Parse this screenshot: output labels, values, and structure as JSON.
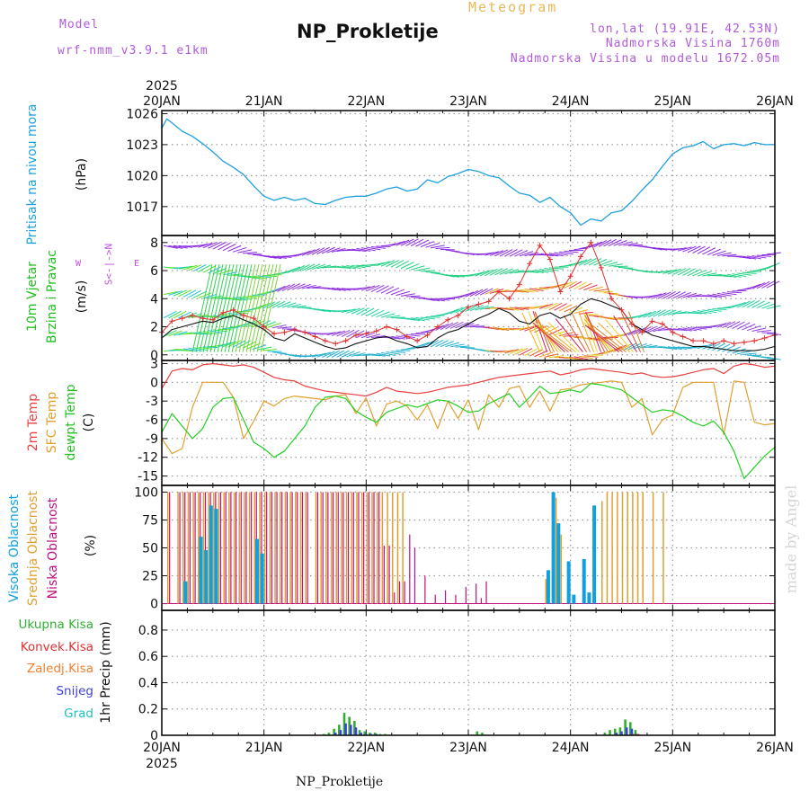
{
  "header": {
    "model_label": "Model",
    "model_name": "wrf-nmm_v3.9.1 e1km",
    "meteogram": "Meteogram",
    "title": "NP_Prokletije",
    "lonlat": "lon,lat (19.91E, 42.53N)",
    "altitude": "Nadmorska Visina 1760m",
    "model_altitude": "Nadmorska Visina u modelu 1672.05m"
  },
  "footer": {
    "station": "NP_Prokletije",
    "credit": "made by Angel"
  },
  "time_axis": {
    "labels": [
      "20JAN",
      "21JAN",
      "22JAN",
      "23JAN",
      "24JAN",
      "25JAN",
      "26JAN"
    ],
    "year": "2025"
  },
  "colors": {
    "pressure": "#1ea0e0",
    "temp2m": "#e84040",
    "sfctemp": "#e0a030",
    "dewpt": "#20d020",
    "high_cloud": "#10a0e0",
    "mid_cloud": "#e0a030",
    "low_cloud": "#c01080",
    "precip_total": "#30b030",
    "precip_conv": "#e03030",
    "snow": "#4040e0",
    "hail": "#20c0c0",
    "wind_speed": "#111111",
    "gust": "#e03030"
  },
  "chart_data": [
    {
      "type": "line",
      "panel": "pressure",
      "ylabel": "Pritisak na nivou mora",
      "unit": "(hPa)",
      "yticks": [
        1017,
        1020,
        1023,
        1026
      ],
      "ylim": [
        1014.2,
        1026.3
      ],
      "x_days": [
        0,
        0.05,
        0.1,
        0.2,
        0.3,
        0.4,
        0.5,
        0.6,
        0.7,
        0.8,
        0.9,
        1.0,
        1.1,
        1.2,
        1.3,
        1.4,
        1.5,
        1.6,
        1.7,
        1.8,
        1.9,
        2.0,
        2.1,
        2.2,
        2.3,
        2.4,
        2.5,
        2.6,
        2.7,
        2.8,
        2.9,
        3.0,
        3.1,
        3.2,
        3.3,
        3.4,
        3.5,
        3.6,
        3.7,
        3.8,
        3.9,
        4.0,
        4.1,
        4.2,
        4.3,
        4.4,
        4.5,
        4.6,
        4.7,
        4.8,
        4.9,
        5.0,
        5.1,
        5.2,
        5.3,
        5.4,
        5.5,
        5.6,
        5.7,
        5.8,
        5.9,
        6.0
      ],
      "values": [
        1024.6,
        1025.5,
        1025.1,
        1024.3,
        1023.8,
        1023.1,
        1022.3,
        1021.4,
        1020.8,
        1020.1,
        1019.0,
        1018.0,
        1017.6,
        1017.9,
        1017.6,
        1017.8,
        1017.3,
        1017.2,
        1017.6,
        1017.9,
        1018.0,
        1018.0,
        1018.3,
        1018.7,
        1018.9,
        1018.5,
        1018.7,
        1019.6,
        1019.3,
        1019.9,
        1020.2,
        1020.6,
        1020.4,
        1020.0,
        1019.8,
        1019.0,
        1018.3,
        1018.1,
        1017.4,
        1017.9,
        1017.0,
        1016.4,
        1015.2,
        1015.8,
        1015.6,
        1016.4,
        1016.6,
        1017.5,
        1018.6,
        1019.6,
        1020.9,
        1022.1,
        1022.7,
        1022.9,
        1023.3,
        1022.6,
        1023.0,
        1023.1,
        1022.9,
        1023.2,
        1023.0,
        1023.0
      ]
    },
    {
      "type": "line",
      "panel": "wind",
      "ylabel": "10m Vjetar Brzina i Pravac",
      "unit": "(m/s)",
      "direction_labels": {
        "n": "N",
        "s": "S",
        "w": "W",
        "e": "E",
        "compass": "<-|->"
      },
      "yticks": [
        0,
        2,
        4,
        6,
        8
      ],
      "ylim": [
        -0.4,
        8.5
      ],
      "x_days": [
        0,
        0.1,
        0.2,
        0.3,
        0.4,
        0.5,
        0.6,
        0.7,
        0.8,
        0.9,
        1.0,
        1.1,
        1.2,
        1.3,
        1.4,
        1.5,
        1.6,
        1.7,
        1.8,
        1.9,
        2.0,
        2.1,
        2.2,
        2.3,
        2.4,
        2.5,
        2.6,
        2.7,
        2.8,
        2.9,
        3.0,
        3.1,
        3.2,
        3.3,
        3.4,
        3.5,
        3.6,
        3.7,
        3.8,
        3.9,
        4.0,
        4.1,
        4.2,
        4.3,
        4.4,
        4.5,
        4.6,
        4.7,
        4.8,
        4.9,
        5.0,
        5.1,
        5.2,
        5.3,
        5.4,
        5.5,
        5.6,
        5.7,
        5.8,
        5.9,
        6.0
      ],
      "series": [
        {
          "role": "speed",
          "values": [
            1.2,
            1.8,
            2.0,
            2.2,
            2.4,
            2.3,
            2.6,
            2.8,
            2.5,
            2.2,
            1.8,
            1.2,
            1.0,
            1.5,
            1.2,
            0.9,
            0.6,
            0.4,
            0.5,
            0.8,
            1.0,
            1.2,
            1.3,
            1.0,
            0.8,
            0.5,
            0.6,
            1.2,
            1.6,
            1.8,
            2.2,
            2.6,
            2.9,
            3.3,
            3.0,
            2.4,
            2.2,
            2.8,
            3.0,
            2.6,
            2.9,
            3.6,
            4.0,
            3.8,
            3.5,
            3.2,
            2.2,
            1.8,
            1.4,
            1.2,
            1.0,
            0.8,
            0.6,
            0.6,
            0.5,
            0.4,
            0.3,
            0.3,
            0.3,
            0.4,
            0.6
          ]
        },
        {
          "role": "gust",
          "values": [
            1.6,
            2.4,
            2.6,
            2.8,
            2.6,
            2.5,
            3.0,
            3.2,
            2.8,
            2.6,
            2.0,
            1.5,
            1.6,
            1.8,
            1.6,
            1.3,
            1.0,
            0.8,
            1.0,
            1.4,
            1.5,
            1.7,
            2.0,
            1.8,
            1.3,
            1.0,
            1.4,
            2.0,
            2.5,
            2.8,
            3.4,
            3.6,
            3.8,
            4.5,
            4.0,
            5.0,
            6.5,
            7.8,
            6.8,
            4.5,
            5.6,
            7.0,
            8.0,
            6.2,
            4.0,
            3.2,
            2.2,
            1.6,
            2.4,
            2.2,
            1.6,
            1.3,
            1.0,
            1.0,
            0.8,
            1.0,
            0.8,
            0.9,
            1.0,
            1.2,
            1.4
          ]
        }
      ]
    },
    {
      "type": "line",
      "panel": "temperature",
      "ylabel": "2m Temp SFC Temp dewpt Temp",
      "legend": [
        "2m Temp",
        "SFC Temp",
        "dewpt Temp"
      ],
      "unit": "(C)",
      "yticks": [
        -15,
        -12,
        -9,
        -6,
        -3,
        0,
        3
      ],
      "ylim": [
        -16.5,
        3.5
      ],
      "x_days": [
        0,
        0.1,
        0.2,
        0.3,
        0.4,
        0.5,
        0.6,
        0.7,
        0.8,
        0.9,
        1.0,
        1.1,
        1.2,
        1.3,
        1.4,
        1.5,
        1.6,
        1.7,
        1.8,
        1.9,
        2.0,
        2.1,
        2.2,
        2.3,
        2.4,
        2.5,
        2.6,
        2.7,
        2.8,
        2.9,
        3.0,
        3.1,
        3.2,
        3.3,
        3.4,
        3.5,
        3.6,
        3.7,
        3.8,
        3.9,
        4.0,
        4.1,
        4.2,
        4.3,
        4.4,
        4.5,
        4.6,
        4.7,
        4.8,
        4.9,
        5.0,
        5.1,
        5.2,
        5.3,
        5.4,
        5.5,
        5.6,
        5.7,
        5.8,
        5.9,
        6.0
      ],
      "series": [
        {
          "name": "2m Temp",
          "values": [
            -1.0,
            1.8,
            2.2,
            2.0,
            2.8,
            3.0,
            2.8,
            2.6,
            2.8,
            2.4,
            1.6,
            0.8,
            0.4,
            0.2,
            -0.6,
            -1.0,
            -1.4,
            -1.6,
            -1.8,
            -2.0,
            -2.2,
            -1.6,
            -0.8,
            -1.4,
            -1.6,
            -1.8,
            -1.6,
            -1.2,
            -0.8,
            -0.6,
            -0.4,
            0.0,
            0.4,
            0.8,
            1.0,
            1.2,
            1.4,
            1.6,
            1.8,
            1.2,
            1.5,
            2.0,
            2.2,
            2.0,
            1.8,
            1.6,
            1.3,
            1.5,
            1.0,
            0.8,
            0.9,
            1.2,
            1.6,
            2.0,
            2.2,
            1.4,
            2.6,
            3.0,
            2.8,
            2.4,
            2.6
          ]
        },
        {
          "name": "SFC Temp",
          "values": [
            -9.0,
            -11.4,
            -10.6,
            -4.0,
            0.0,
            0.0,
            0.0,
            -2.4,
            -9.0,
            -6.2,
            -3.0,
            -3.8,
            -2.6,
            -2.2,
            -2.4,
            -2.6,
            -2.8,
            -2.2,
            -2.0,
            -5.0,
            -2.5,
            -7.0,
            -3.5,
            -3.0,
            -3.8,
            -6.0,
            -3.6,
            -7.4,
            -3.0,
            -5.8,
            -2.8,
            -7.6,
            -2.0,
            -4.0,
            -1.0,
            -0.6,
            -4.0,
            -1.4,
            -4.6,
            -1.2,
            -1.0,
            -0.4,
            -0.2,
            0.0,
            0.2,
            0.0,
            -4.0,
            -2.6,
            -8.4,
            -6.0,
            -5.2,
            -0.8,
            0.0,
            0.0,
            0.0,
            -8.4,
            0.2,
            0.0,
            -6.4,
            -6.8,
            -6.6
          ]
        },
        {
          "name": "dewpt Temp",
          "values": [
            -8.0,
            -5.0,
            -7.0,
            -9.0,
            -7.4,
            -4.0,
            -2.6,
            -2.4,
            -6.0,
            -9.6,
            -10.6,
            -12.0,
            -11.0,
            -9.0,
            -7.0,
            -4.0,
            -2.4,
            -2.2,
            -2.6,
            -4.6,
            -5.6,
            -6.4,
            -4.8,
            -4.2,
            -3.6,
            -4.0,
            -3.4,
            -2.8,
            -3.0,
            -3.8,
            -4.8,
            -4.6,
            -3.4,
            -2.6,
            -1.8,
            -4.0,
            -2.4,
            -0.6,
            -1.8,
            -1.6,
            -1.2,
            -1.6,
            -0.2,
            -0.4,
            -0.8,
            -1.2,
            -2.4,
            -3.6,
            -4.8,
            -4.4,
            -4.6,
            -5.4,
            -6.4,
            -7.0,
            -6.2,
            -8.0,
            -11.0,
            -15.4,
            -13.6,
            -11.8,
            -10.4
          ]
        }
      ]
    },
    {
      "type": "bar",
      "panel": "clouds",
      "ylabel": "Visoka Oblacnost Srednja Oblacnost Niska Oblacnost",
      "legend": [
        "Visoka Oblacnost",
        "Srednja Oblacnost",
        "Niska Oblacnost"
      ],
      "unit": "(%)",
      "yticks": [
        0,
        25,
        50,
        75,
        100
      ],
      "ylim": [
        -6,
        106
      ],
      "x_days": [
        0.05,
        0.15,
        0.2,
        0.25,
        0.3,
        0.35,
        0.4,
        0.45,
        0.5,
        0.55,
        0.6,
        0.65,
        0.7,
        0.75,
        0.8,
        0.85,
        0.9,
        0.95,
        1.0,
        1.05,
        1.1,
        1.15,
        1.2,
        1.25,
        1.3,
        1.35,
        1.4,
        1.5,
        1.55,
        1.6,
        1.65,
        1.7,
        1.75,
        1.8,
        1.85,
        1.9,
        1.95,
        2.0,
        2.05,
        2.1,
        2.15,
        2.2,
        2.25,
        2.3,
        2.35,
        2.4,
        2.45,
        2.55,
        2.65,
        2.75,
        2.85,
        2.95,
        3.05,
        3.1,
        3.15,
        3.2,
        3.25,
        3.3,
        3.35,
        3.4,
        3.45,
        3.5,
        3.55,
        3.6,
        3.65,
        3.7,
        3.75,
        3.8,
        3.85,
        3.9,
        3.95,
        4.0,
        4.05,
        4.1,
        4.15,
        4.2,
        4.25,
        4.3,
        4.35,
        4.4,
        4.45,
        4.5,
        4.55,
        4.6,
        4.65,
        4.7,
        4.8,
        4.9
      ],
      "series": [
        {
          "name": "Visoka Oblacnost",
          "values": [
            0,
            0,
            0,
            20,
            0,
            0,
            60,
            48,
            88,
            85,
            0,
            0,
            0,
            0,
            0,
            0,
            0,
            58,
            45,
            0,
            0,
            0,
            0,
            0,
            0,
            0,
            0,
            0,
            0,
            0,
            0,
            0,
            0,
            0,
            0,
            0,
            0,
            0,
            0,
            0,
            0,
            0,
            0,
            0,
            0,
            0,
            0,
            0,
            0,
            0,
            0,
            0,
            0,
            0,
            0,
            0,
            0,
            0,
            0,
            0,
            0,
            0,
            0,
            0,
            0,
            0,
            0,
            30,
            100,
            72,
            0,
            38,
            8,
            0,
            40,
            10,
            88,
            0,
            0,
            0,
            0,
            0,
            0,
            0,
            0,
            0,
            0,
            0
          ]
        },
        {
          "name": "Srednja Oblacnost",
          "values": [
            100,
            100,
            100,
            100,
            100,
            100,
            100,
            100,
            100,
            100,
            100,
            100,
            100,
            100,
            100,
            100,
            100,
            100,
            100,
            100,
            100,
            100,
            100,
            100,
            100,
            100,
            100,
            100,
            100,
            100,
            100,
            100,
            100,
            100,
            100,
            100,
            100,
            100,
            100,
            100,
            100,
            100,
            100,
            100,
            100,
            0,
            0,
            0,
            0,
            0,
            0,
            0,
            0,
            0,
            0,
            0,
            0,
            0,
            0,
            0,
            0,
            0,
            0,
            0,
            0,
            0,
            22,
            0,
            95,
            62,
            0,
            0,
            0,
            0,
            0,
            0,
            0,
            92,
            100,
            100,
            100,
            100,
            100,
            100,
            100,
            100,
            100,
            100
          ]
        },
        {
          "name": "Niska Oblacnost",
          "values": [
            100,
            100,
            100,
            100,
            100,
            100,
            100,
            100,
            100,
            100,
            100,
            100,
            100,
            100,
            100,
            100,
            100,
            100,
            100,
            100,
            100,
            100,
            100,
            100,
            100,
            100,
            100,
            100,
            100,
            100,
            100,
            100,
            100,
            100,
            100,
            100,
            100,
            100,
            100,
            100,
            52,
            52,
            10,
            20,
            20,
            62,
            50,
            25,
            8,
            12,
            8,
            15,
            18,
            5,
            20,
            0,
            0,
            0,
            0,
            0,
            0,
            0,
            0,
            0,
            0,
            0,
            0,
            0,
            0,
            0,
            0,
            0,
            0,
            0,
            0,
            0,
            0,
            0,
            0,
            0,
            0,
            0,
            0,
            0,
            0,
            0,
            0,
            0
          ]
        }
      ]
    },
    {
      "type": "bar",
      "panel": "precipitation",
      "ylabel": "1hr Precip (mm)",
      "legend": [
        "Ukupna Kisa",
        "Konvek.Kisa",
        "Zaledj.Kisa",
        "Snijeg",
        "Grad"
      ],
      "yticks": [
        0,
        0.2,
        0.4,
        0.6,
        0.8
      ],
      "ylim": [
        0,
        0.95
      ],
      "x_days": [
        1.6,
        1.65,
        1.7,
        1.75,
        1.8,
        1.85,
        1.9,
        1.95,
        2.0,
        2.05,
        2.1,
        2.15,
        2.2,
        3.1,
        3.15,
        4.35,
        4.4,
        4.45,
        4.5,
        4.55,
        4.6,
        4.65
      ],
      "series": [
        {
          "name": "Ukupna Kisa",
          "values": [
            0.01,
            0.02,
            0.05,
            0.08,
            0.17,
            0.14,
            0.11,
            0.04,
            0.03,
            0.02,
            0.02,
            0.01,
            0.01,
            0.03,
            0.02,
            0.02,
            0.04,
            0.05,
            0.06,
            0.12,
            0.1,
            0.04
          ]
        },
        {
          "name": "Konvek.Kisa",
          "values": [
            0,
            0,
            0,
            0,
            0,
            0,
            0,
            0,
            0,
            0,
            0,
            0,
            0,
            0,
            0,
            0,
            0,
            0,
            0,
            0,
            0.01,
            0.01
          ]
        },
        {
          "name": "Snijeg",
          "values": [
            0,
            0,
            0.02,
            0.04,
            0.09,
            0.08,
            0.06,
            0.02,
            0.01,
            0.01,
            0.01,
            0,
            0,
            0,
            0,
            0,
            0,
            0.02,
            0.03,
            0.06,
            0.05,
            0.01
          ]
        }
      ]
    }
  ]
}
